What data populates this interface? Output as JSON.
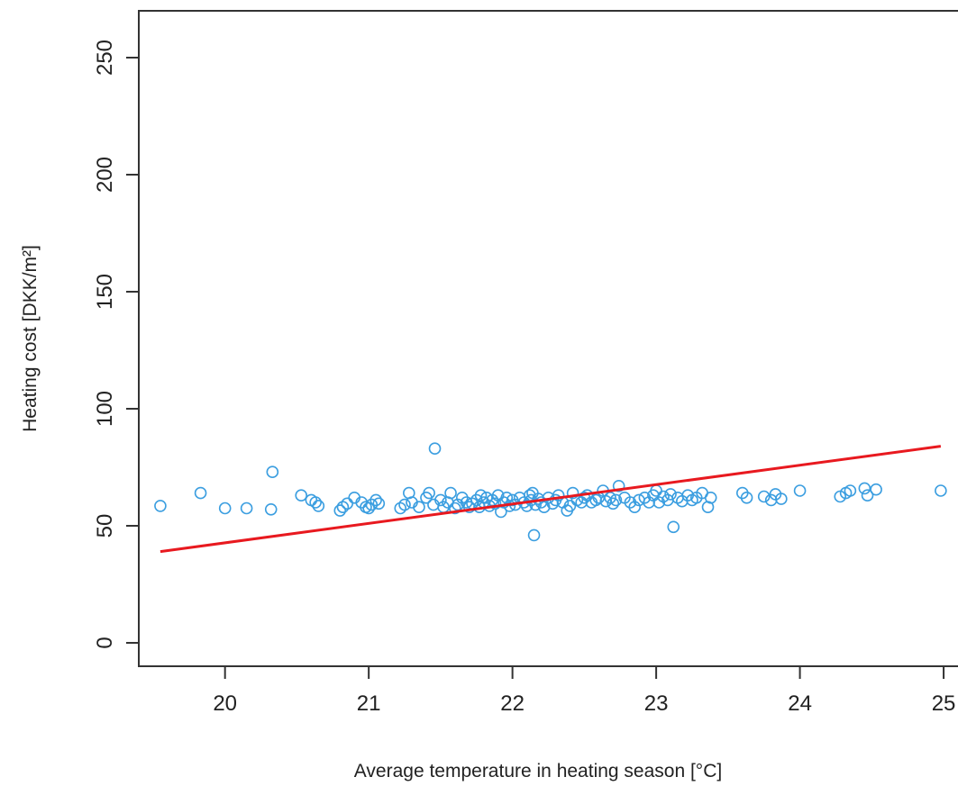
{
  "chart_data": {
    "type": "scatter",
    "title": "",
    "xlabel": "Average temperature in heating season [°C]",
    "ylabel": "Heating cost [DKK/m²]",
    "xlim": [
      19.4,
      25.1
    ],
    "ylim": [
      -10,
      270
    ],
    "xticks": [
      "20",
      "21",
      "22",
      "23",
      "24",
      "25"
    ],
    "yticks": [
      "0",
      "50",
      "100",
      "150",
      "200",
      "250"
    ],
    "grid": false,
    "colors": {
      "points": "#3b9ee0",
      "fit_line": "#e8191f",
      "axes": "#333333"
    },
    "series": [
      {
        "type": "scatter",
        "points": [
          [
            19.55,
            58.5
          ],
          [
            19.83,
            64
          ],
          [
            20.0,
            57.5
          ],
          [
            20.15,
            57.5
          ],
          [
            20.32,
            57
          ],
          [
            20.33,
            73
          ],
          [
            20.53,
            63
          ],
          [
            20.6,
            61
          ],
          [
            20.63,
            60
          ],
          [
            20.65,
            58.5
          ],
          [
            20.8,
            56.5
          ],
          [
            20.82,
            58
          ],
          [
            20.85,
            59.5
          ],
          [
            20.9,
            62
          ],
          [
            20.95,
            60
          ],
          [
            20.98,
            58
          ],
          [
            21.0,
            57.5
          ],
          [
            21.02,
            59
          ],
          [
            21.05,
            61
          ],
          [
            21.07,
            59.5
          ],
          [
            21.22,
            57.5
          ],
          [
            21.25,
            59
          ],
          [
            21.28,
            64
          ],
          [
            21.3,
            60
          ],
          [
            21.35,
            58
          ],
          [
            21.4,
            62
          ],
          [
            21.42,
            64
          ],
          [
            21.45,
            59
          ],
          [
            21.46,
            83
          ],
          [
            21.5,
            61
          ],
          [
            21.52,
            58
          ],
          [
            21.55,
            60
          ],
          [
            21.57,
            64
          ],
          [
            21.6,
            57.5
          ],
          [
            21.62,
            59
          ],
          [
            21.65,
            62
          ],
          [
            21.68,
            60
          ],
          [
            21.7,
            58
          ],
          [
            21.72,
            59.5
          ],
          [
            21.75,
            61
          ],
          [
            21.77,
            58
          ],
          [
            21.78,
            63
          ],
          [
            21.8,
            60
          ],
          [
            21.82,
            62
          ],
          [
            21.84,
            58.5
          ],
          [
            21.86,
            61
          ],
          [
            21.88,
            59.5
          ],
          [
            21.9,
            63
          ],
          [
            21.92,
            56
          ],
          [
            21.94,
            60
          ],
          [
            21.96,
            62
          ],
          [
            21.98,
            58.5
          ],
          [
            22.0,
            61
          ],
          [
            22.02,
            59
          ],
          [
            22.05,
            62
          ],
          [
            22.08,
            60
          ],
          [
            22.1,
            58.5
          ],
          [
            22.12,
            63
          ],
          [
            22.13,
            61
          ],
          [
            22.14,
            64
          ],
          [
            22.15,
            46
          ],
          [
            22.16,
            59
          ],
          [
            22.18,
            61.5
          ],
          [
            22.2,
            60
          ],
          [
            22.22,
            58
          ],
          [
            22.25,
            62
          ],
          [
            22.28,
            59.5
          ],
          [
            22.3,
            61
          ],
          [
            22.32,
            63
          ],
          [
            22.35,
            60
          ],
          [
            22.38,
            56.5
          ],
          [
            22.4,
            58.5
          ],
          [
            22.42,
            64
          ],
          [
            22.45,
            61
          ],
          [
            22.48,
            60
          ],
          [
            22.5,
            62
          ],
          [
            22.52,
            63
          ],
          [
            22.55,
            60
          ],
          [
            22.58,
            61
          ],
          [
            22.6,
            62
          ],
          [
            22.63,
            65
          ],
          [
            22.65,
            60.5
          ],
          [
            22.68,
            62
          ],
          [
            22.7,
            59.5
          ],
          [
            22.72,
            61
          ],
          [
            22.74,
            67
          ],
          [
            22.78,
            62
          ],
          [
            22.82,
            60
          ],
          [
            22.85,
            58
          ],
          [
            22.88,
            61
          ],
          [
            22.92,
            62
          ],
          [
            22.95,
            60
          ],
          [
            22.98,
            63
          ],
          [
            23.0,
            65
          ],
          [
            23.02,
            60
          ],
          [
            23.05,
            62.5
          ],
          [
            23.08,
            61
          ],
          [
            23.1,
            63.5
          ],
          [
            23.12,
            49.5
          ],
          [
            23.15,
            62
          ],
          [
            23.18,
            60.5
          ],
          [
            23.22,
            63
          ],
          [
            23.25,
            61
          ],
          [
            23.28,
            62
          ],
          [
            23.32,
            64
          ],
          [
            23.36,
            58
          ],
          [
            23.38,
            62
          ],
          [
            23.6,
            64
          ],
          [
            23.63,
            62
          ],
          [
            23.75,
            62.5
          ],
          [
            23.8,
            61
          ],
          [
            23.83,
            63.5
          ],
          [
            23.87,
            61.5
          ],
          [
            24.0,
            65
          ],
          [
            24.28,
            62.5
          ],
          [
            24.32,
            64
          ],
          [
            24.35,
            65
          ],
          [
            24.45,
            66
          ],
          [
            24.47,
            63
          ],
          [
            24.53,
            65.5
          ],
          [
            24.98,
            65
          ]
        ]
      },
      {
        "type": "line",
        "x": [
          19.55,
          24.98
        ],
        "y": [
          39,
          84
        ]
      }
    ]
  }
}
